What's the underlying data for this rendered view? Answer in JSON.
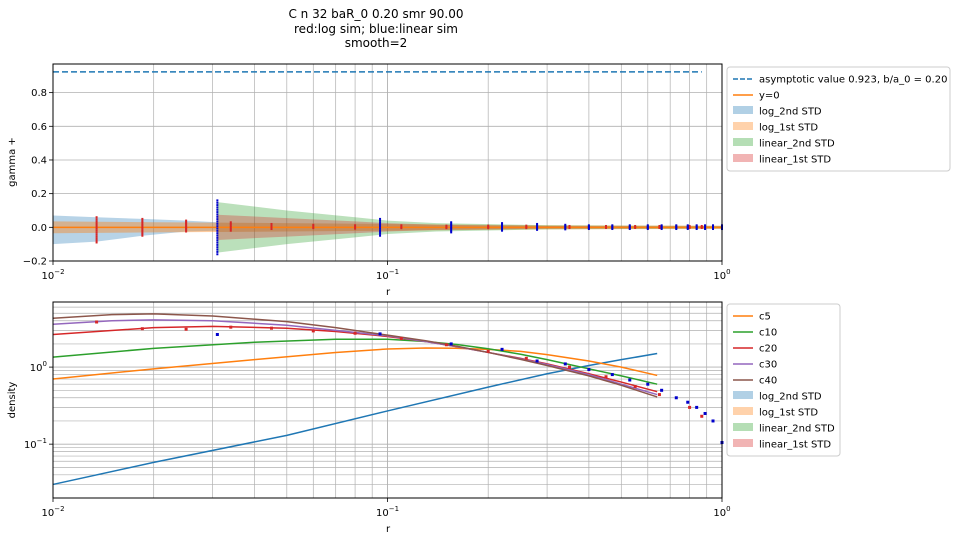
{
  "figure": {
    "title_lines": [
      "C n 32 baR_0 0.20 smr 90.00",
      "red:log sim; blue:linear sim",
      "smooth=2"
    ]
  },
  "colors": {
    "c_blue": "#1f77b4",
    "c_orange": "#ff7f0e",
    "c_green": "#2ca02c",
    "c_red": "#d62728",
    "c_purple": "#9467bd",
    "c_brown": "#8c564b",
    "pt_red": "#d62728",
    "pt_blue": "#0000cc"
  },
  "chart_data": [
    {
      "type": "area",
      "xlabel": "r",
      "ylabel": "gamma +",
      "xscale": "log",
      "xlim": [
        0.01,
        1.0
      ],
      "ylim": [
        -0.2,
        0.97
      ],
      "xticks": [
        {
          "v": 0.01,
          "base": "10",
          "exp": "−2"
        },
        {
          "v": 0.1,
          "base": "10",
          "exp": "−1"
        },
        {
          "v": 1.0,
          "base": "10",
          "exp": "0"
        }
      ],
      "yticks": [
        {
          "v": -0.2,
          "label": "−0.2"
        },
        {
          "v": 0.0,
          "label": "0.0"
        },
        {
          "v": 0.2,
          "label": "0.2"
        },
        {
          "v": 0.4,
          "label": "0.4"
        },
        {
          "v": 0.6,
          "label": "0.6"
        },
        {
          "v": 0.8,
          "label": "0.8"
        }
      ],
      "grid": true,
      "legend_position": "outside-right",
      "legend": [
        {
          "label": "asymptotic value 0.923, b/a_0 = 0.20",
          "kind": "dash",
          "color": "#1f77b4"
        },
        {
          "label": "y=0",
          "kind": "line",
          "color": "#ff7f0e"
        },
        {
          "label": "log_2nd STD",
          "kind": "patch",
          "color": "#1f77b4"
        },
        {
          "label": "log_1st STD",
          "kind": "patch",
          "color": "#ff7f0e"
        },
        {
          "label": "linear_2nd STD",
          "kind": "patch",
          "color": "#2ca02c"
        },
        {
          "label": "linear_1st STD",
          "kind": "patch",
          "color": "#d62728"
        }
      ],
      "asymptote": {
        "y": 0.923,
        "x_range": [
          0.01,
          0.87
        ]
      },
      "zero_line": {
        "y": 0.0
      },
      "bands": [
        {
          "name": "log_2nd STD",
          "color": "#1f77b4",
          "opacity": 0.32,
          "x": [
            0.01,
            0.0135,
            0.0185,
            0.025,
            0.031
          ],
          "lo": [
            -0.1,
            -0.085,
            -0.05,
            -0.025,
            -0.02
          ],
          "hi": [
            0.07,
            0.06,
            0.05,
            0.04,
            0.03
          ]
        },
        {
          "name": "log_1st STD",
          "color": "#ff7f0e",
          "opacity": 0.4,
          "x": [
            0.01,
            0.02,
            0.031,
            0.1,
            0.3,
            1.0
          ],
          "lo": [
            -0.035,
            -0.03,
            -0.028,
            -0.02,
            -0.012,
            -0.01
          ],
          "hi": [
            0.035,
            0.03,
            0.028,
            0.02,
            0.012,
            0.01
          ]
        },
        {
          "name": "linear_2nd STD",
          "color": "#2ca02c",
          "opacity": 0.32,
          "x": [
            0.031,
            0.05,
            0.08,
            0.1,
            0.14,
            0.3,
            0.5,
            1.0
          ],
          "lo": [
            -0.15,
            -0.1,
            -0.06,
            -0.04,
            -0.025,
            -0.012,
            -0.01,
            -0.008
          ],
          "hi": [
            0.15,
            0.1,
            0.06,
            0.04,
            0.025,
            0.012,
            0.01,
            0.008
          ]
        },
        {
          "name": "linear_1st STD",
          "color": "#d62728",
          "opacity": 0.32,
          "x": [
            0.031,
            0.05,
            0.08,
            0.1,
            0.14,
            0.3,
            1.0
          ],
          "lo": [
            -0.075,
            -0.055,
            -0.035,
            -0.025,
            -0.015,
            -0.008,
            -0.005
          ],
          "hi": [
            0.075,
            0.055,
            0.035,
            0.025,
            0.015,
            0.008,
            0.005
          ]
        }
      ],
      "scatter_groups": [
        {
          "name": "red",
          "color": "#d62728",
          "columns": [
            {
              "x": 0.0135,
              "lo": -0.09,
              "hi": 0.06,
              "n": 14
            },
            {
              "x": 0.0185,
              "lo": -0.05,
              "hi": 0.05,
              "n": 12
            },
            {
              "x": 0.025,
              "lo": -0.025,
              "hi": 0.04,
              "n": 10
            },
            {
              "x": 0.034,
              "lo": -0.02,
              "hi": 0.03,
              "n": 6
            },
            {
              "x": 0.045,
              "lo": -0.01,
              "hi": 0.02,
              "n": 4
            },
            {
              "x": 0.06,
              "lo": -0.005,
              "hi": 0.015,
              "n": 3
            },
            {
              "x": 0.08,
              "lo": -0.008,
              "hi": 0.012,
              "n": 3
            },
            {
              "x": 0.11,
              "lo": -0.005,
              "hi": 0.012,
              "n": 3
            },
            {
              "x": 0.15,
              "lo": -0.005,
              "hi": 0.01,
              "n": 3
            },
            {
              "x": 0.2,
              "lo": -0.005,
              "hi": 0.01,
              "n": 3
            },
            {
              "x": 0.26,
              "lo": -0.005,
              "hi": 0.01,
              "n": 3
            },
            {
              "x": 0.35,
              "lo": -0.004,
              "hi": 0.008,
              "n": 3
            },
            {
              "x": 0.45,
              "lo": -0.004,
              "hi": 0.008,
              "n": 3
            },
            {
              "x": 0.55,
              "lo": -0.004,
              "hi": 0.008,
              "n": 3
            },
            {
              "x": 0.65,
              "lo": -0.004,
              "hi": 0.008,
              "n": 3
            },
            {
              "x": 0.8,
              "lo": -0.004,
              "hi": 0.008,
              "n": 3
            },
            {
              "x": 0.87,
              "lo": -0.004,
              "hi": 0.008,
              "n": 3
            }
          ]
        },
        {
          "name": "blue",
          "color": "#0000cc",
          "columns": [
            {
              "x": 0.031,
              "lo": -0.16,
              "hi": 0.16,
              "n": 24
            },
            {
              "x": 0.095,
              "lo": -0.05,
              "hi": 0.05,
              "n": 10
            },
            {
              "x": 0.155,
              "lo": -0.03,
              "hi": 0.03,
              "n": 8
            },
            {
              "x": 0.22,
              "lo": -0.02,
              "hi": 0.025,
              "n": 7
            },
            {
              "x": 0.28,
              "lo": -0.015,
              "hi": 0.02,
              "n": 6
            },
            {
              "x": 0.34,
              "lo": -0.012,
              "hi": 0.015,
              "n": 5
            },
            {
              "x": 0.4,
              "lo": -0.01,
              "hi": 0.012,
              "n": 5
            },
            {
              "x": 0.47,
              "lo": -0.01,
              "hi": 0.012,
              "n": 5
            },
            {
              "x": 0.53,
              "lo": -0.01,
              "hi": 0.012,
              "n": 5
            },
            {
              "x": 0.6,
              "lo": -0.01,
              "hi": 0.012,
              "n": 5
            },
            {
              "x": 0.66,
              "lo": -0.01,
              "hi": 0.012,
              "n": 5
            },
            {
              "x": 0.73,
              "lo": -0.01,
              "hi": 0.012,
              "n": 5
            },
            {
              "x": 0.79,
              "lo": -0.01,
              "hi": 0.012,
              "n": 5
            },
            {
              "x": 0.84,
              "lo": -0.01,
              "hi": 0.012,
              "n": 5
            },
            {
              "x": 0.89,
              "lo": -0.01,
              "hi": 0.012,
              "n": 5
            },
            {
              "x": 0.94,
              "lo": -0.01,
              "hi": 0.012,
              "n": 5
            },
            {
              "x": 1.0,
              "lo": -0.01,
              "hi": 0.012,
              "n": 5
            }
          ]
        }
      ]
    },
    {
      "type": "line",
      "xlabel": "r",
      "ylabel": "density",
      "xscale": "log",
      "yscale": "log",
      "xlim": [
        0.01,
        1.0
      ],
      "ylim": [
        0.02,
        7.0
      ],
      "xticks": [
        {
          "v": 0.01,
          "base": "10",
          "exp": "−2"
        },
        {
          "v": 0.1,
          "base": "10",
          "exp": "−1"
        },
        {
          "v": 1.0,
          "base": "10",
          "exp": "0"
        }
      ],
      "yticks": [
        {
          "v": 0.1,
          "base": "10",
          "exp": "−1"
        },
        {
          "v": 1.0,
          "base": "10",
          "exp": "0"
        }
      ],
      "grid": true,
      "legend_position": "outside-right",
      "legend": [
        {
          "label": "c5",
          "kind": "line",
          "color": "#ff7f0e"
        },
        {
          "label": "c10",
          "kind": "line",
          "color": "#2ca02c"
        },
        {
          "label": "c20",
          "kind": "line",
          "color": "#d62728"
        },
        {
          "label": "c30",
          "kind": "line",
          "color": "#9467bd"
        },
        {
          "label": "c40",
          "kind": "line",
          "color": "#8c564b"
        },
        {
          "label": "log_2nd STD",
          "kind": "patch",
          "color": "#1f77b4"
        },
        {
          "label": "log_1st STD",
          "kind": "patch",
          "color": "#ff7f0e"
        },
        {
          "label": "linear_2nd STD",
          "kind": "patch",
          "color": "#2ca02c"
        },
        {
          "label": "linear_1st STD",
          "kind": "patch",
          "color": "#d62728"
        }
      ],
      "series": [
        {
          "color": "#1f77b4",
          "x": [
            0.01,
            0.02,
            0.05,
            0.1,
            0.2,
            0.3,
            0.4,
            0.5,
            0.64
          ],
          "y": [
            0.03,
            0.058,
            0.13,
            0.27,
            0.55,
            0.82,
            1.05,
            1.25,
            1.5
          ]
        },
        {
          "name": "c5",
          "color": "#ff7f0e",
          "x": [
            0.01,
            0.02,
            0.04,
            0.07,
            0.1,
            0.13,
            0.16,
            0.2,
            0.25,
            0.3,
            0.4,
            0.5,
            0.64
          ],
          "y": [
            0.7,
            0.95,
            1.25,
            1.55,
            1.72,
            1.77,
            1.76,
            1.7,
            1.6,
            1.45,
            1.2,
            1.0,
            0.78
          ]
        },
        {
          "name": "c10",
          "color": "#2ca02c",
          "x": [
            0.01,
            0.02,
            0.04,
            0.07,
            0.1,
            0.13,
            0.16,
            0.2,
            0.25,
            0.3,
            0.4,
            0.5,
            0.64
          ],
          "y": [
            1.35,
            1.75,
            2.1,
            2.3,
            2.3,
            2.15,
            1.97,
            1.73,
            1.47,
            1.25,
            0.95,
            0.77,
            0.6
          ]
        },
        {
          "name": "c20",
          "color": "#d62728",
          "x": [
            0.01,
            0.02,
            0.03,
            0.05,
            0.07,
            0.1,
            0.13,
            0.16,
            0.2,
            0.25,
            0.3,
            0.4,
            0.5,
            0.64
          ],
          "y": [
            2.65,
            3.25,
            3.38,
            3.2,
            2.9,
            2.5,
            2.15,
            1.85,
            1.55,
            1.3,
            1.1,
            0.82,
            0.64,
            0.48
          ]
        },
        {
          "name": "c30",
          "color": "#9467bd",
          "x": [
            0.01,
            0.015,
            0.02,
            0.03,
            0.05,
            0.07,
            0.1,
            0.13,
            0.16,
            0.2,
            0.25,
            0.3,
            0.4,
            0.5,
            0.64
          ],
          "y": [
            3.6,
            4.0,
            4.1,
            4.0,
            3.5,
            3.0,
            2.55,
            2.15,
            1.85,
            1.55,
            1.28,
            1.08,
            0.8,
            0.6,
            0.44
          ]
        },
        {
          "name": "c40",
          "color": "#8c564b",
          "x": [
            0.01,
            0.015,
            0.02,
            0.03,
            0.05,
            0.07,
            0.1,
            0.13,
            0.16,
            0.2,
            0.25,
            0.3,
            0.4,
            0.5,
            0.64
          ],
          "y": [
            4.3,
            4.8,
            4.9,
            4.6,
            3.9,
            3.25,
            2.6,
            2.2,
            1.88,
            1.55,
            1.26,
            1.05,
            0.77,
            0.58,
            0.41
          ]
        }
      ],
      "points_red": {
        "x": [
          0.0135,
          0.0185,
          0.025,
          0.034,
          0.045,
          0.06,
          0.08,
          0.11,
          0.15,
          0.2,
          0.26,
          0.35,
          0.45,
          0.55,
          0.65,
          0.8,
          0.87
        ],
        "y": [
          3.85,
          3.15,
          3.1,
          3.3,
          3.2,
          2.95,
          2.75,
          2.35,
          1.95,
          1.6,
          1.3,
          1.0,
          0.75,
          0.56,
          0.44,
          0.3,
          0.23
        ]
      },
      "points_blue": {
        "x": [
          0.031,
          0.095,
          0.155,
          0.22,
          0.28,
          0.34,
          0.4,
          0.47,
          0.53,
          0.6,
          0.66,
          0.73,
          0.79,
          0.84,
          0.89,
          0.94,
          1.0
        ],
        "y": [
          2.65,
          2.7,
          2.0,
          1.7,
          1.2,
          1.1,
          0.93,
          0.8,
          0.68,
          0.6,
          0.5,
          0.4,
          0.35,
          0.3,
          0.25,
          0.2,
          0.105
        ]
      }
    }
  ]
}
